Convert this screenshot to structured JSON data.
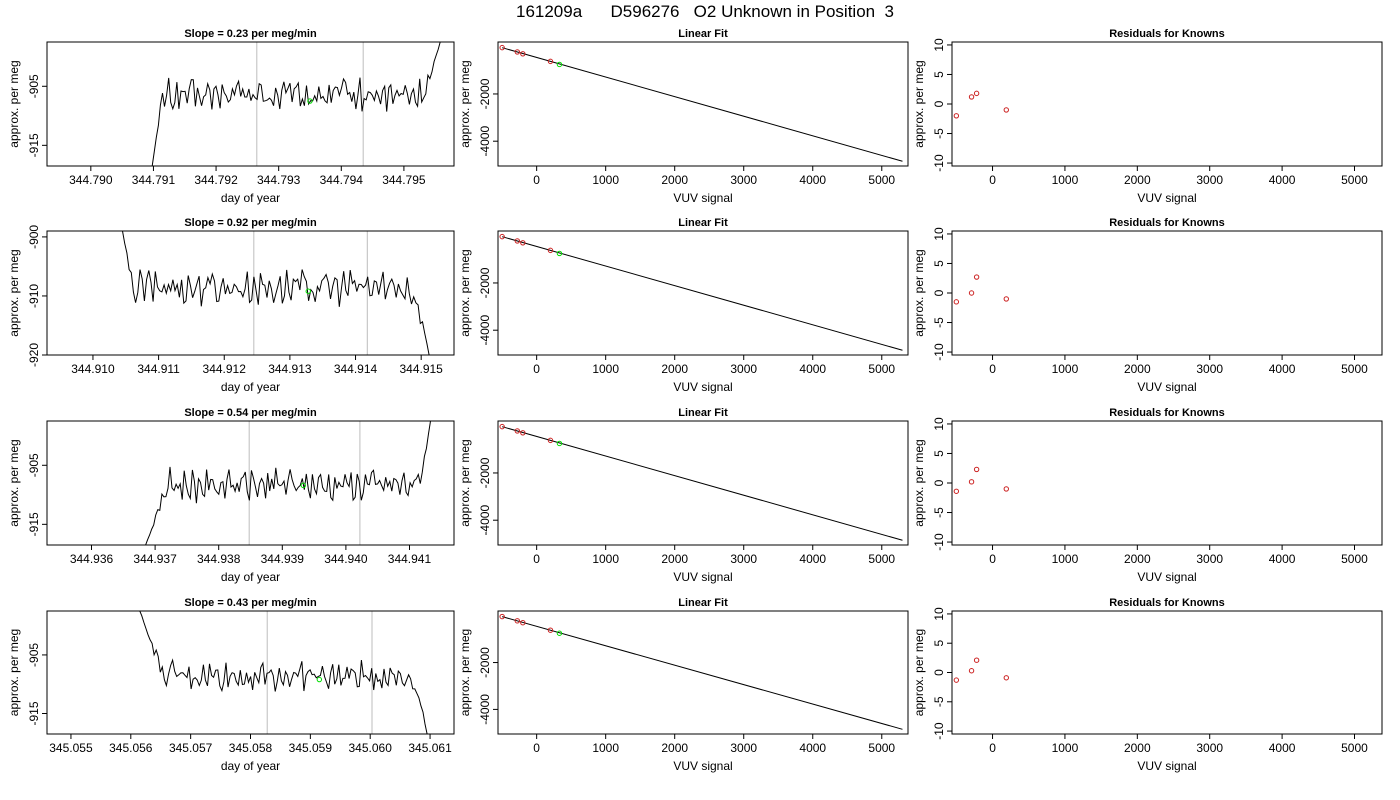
{
  "figure": {
    "title": "161209a      D596276   O2 Unknown in Position  3"
  },
  "colors": {
    "trace": "#000000",
    "vline": "#c8c8c8",
    "known_point": "#cc2222",
    "unknown_point": "#00dd00",
    "axis": "#000000"
  },
  "chart_data": [
    {
      "type": "line",
      "row": 0,
      "col": 0,
      "title": "Slope =  0.23  per meg/min",
      "xlabel": "day of year",
      "ylabel": "approx. per meg",
      "xlim": [
        344.7893,
        344.7958
      ],
      "ylim": [
        -918.5,
        -897.5
      ],
      "xticks": [
        344.79,
        344.791,
        344.792,
        344.793,
        344.794,
        344.795
      ],
      "xtick_labels": [
        "344.790",
        "344.791",
        "344.792",
        "344.793",
        "344.794",
        "344.795"
      ],
      "yticks": [
        -905,
        -915
      ],
      "ytick_labels": [
        "-905",
        "-915"
      ],
      "trace": {
        "x_start": 344.79098,
        "x_end": 344.79558,
        "rise_end": 344.79115,
        "steady_end": 344.79525,
        "start_y": -918.5,
        "end_y": -897.5,
        "mean": -906.5,
        "amp": 2.2
      },
      "vlines": [
        344.79265,
        344.79435
      ],
      "marker": {
        "x": 344.7935,
        "y": -907.5
      }
    },
    {
      "type": "line",
      "row": 1,
      "col": 0,
      "title": "Slope =  0.92  per meg/min",
      "xlabel": "day of year",
      "ylabel": "approx. per meg",
      "xlim": [
        344.9093,
        344.9155
      ],
      "ylim": [
        -920,
        -899
      ],
      "xticks": [
        344.91,
        344.911,
        344.912,
        344.913,
        344.914,
        344.915
      ],
      "xtick_labels": [
        "344.910",
        "344.911",
        "344.912",
        "344.913",
        "344.914",
        "344.915"
      ],
      "yticks": [
        -900,
        -910,
        -920
      ],
      "ytick_labels": [
        "-900",
        "-910",
        "-920"
      ],
      "trace": {
        "x_start": 344.91045,
        "x_end": 344.91512,
        "rise_end": 344.9106,
        "steady_end": 344.9148,
        "start_y": -899,
        "end_y": -920,
        "mean": -908.5,
        "amp": 2.3
      },
      "vlines": [
        344.91245,
        344.91418
      ],
      "marker": {
        "x": 344.91328,
        "y": -909.2
      }
    },
    {
      "type": "line",
      "row": 2,
      "col": 0,
      "title": "Slope =  0.54  per meg/min",
      "xlabel": "day of year",
      "ylabel": "approx. per meg",
      "xlim": [
        344.9353,
        344.9417
      ],
      "ylim": [
        -918.5,
        -897.5
      ],
      "xticks": [
        344.936,
        344.937,
        344.938,
        344.939,
        344.94,
        344.941
      ],
      "xtick_labels": [
        "344.936",
        "344.937",
        "344.938",
        "344.939",
        "344.940",
        "344.941"
      ],
      "yticks": [
        -905,
        -915
      ],
      "ytick_labels": [
        "-905",
        "-915"
      ],
      "trace": {
        "x_start": 344.93685,
        "x_end": 344.94133,
        "rise_end": 344.9372,
        "steady_end": 344.9411,
        "start_y": -918.5,
        "end_y": -897.5,
        "mean": -908.3,
        "amp": 2.1
      },
      "vlines": [
        344.93848,
        344.94022
      ],
      "marker": {
        "x": 344.93933,
        "y": -908.4
      }
    },
    {
      "type": "line",
      "row": 3,
      "col": 0,
      "title": "Slope =  0.43  per meg/min",
      "xlabel": "day of year",
      "ylabel": "approx. per meg",
      "xlim": [
        345.0546,
        345.0614
      ],
      "ylim": [
        -918.5,
        -897.5
      ],
      "xticks": [
        345.055,
        345.056,
        345.057,
        345.058,
        345.059,
        345.06,
        345.061
      ],
      "xtick_labels": [
        "345.055",
        "345.056",
        "345.057",
        "345.058",
        "345.059",
        "345.060",
        "345.061"
      ],
      "yticks": [
        -905,
        -915
      ],
      "ytick_labels": [
        "-905",
        "-915"
      ],
      "trace": {
        "x_start": 345.05615,
        "x_end": 345.06095,
        "rise_end": 345.05655,
        "steady_end": 345.06065,
        "start_y": -897.5,
        "end_y": -918.5,
        "mean": -908.6,
        "amp": 1.9
      },
      "vlines": [
        345.05828,
        345.06003
      ],
      "marker": {
        "x": 345.05915,
        "y": -909.2
      }
    },
    {
      "type": "scatter",
      "row": 0,
      "col": 1,
      "title": "Linear Fit",
      "xlabel": "VUV signal",
      "ylabel": "approx. per meg",
      "xlim": [
        -560,
        5380
      ],
      "ylim": [
        -5050,
        200
      ],
      "xticks": [
        0,
        1000,
        2000,
        3000,
        4000,
        5000
      ],
      "xtick_labels": [
        "0",
        "1000",
        "2000",
        "3000",
        "4000",
        "5000"
      ],
      "yticks": [
        -2000,
        -4000
      ],
      "ytick_labels": [
        "-2000",
        "-4000"
      ],
      "fit_line": {
        "x": [
          -500,
          5300
        ],
        "y": [
          -40,
          -4850
        ]
      },
      "knowns": [
        {
          "x": -500,
          "y": -38
        },
        {
          "x": -280,
          "y": -220
        },
        {
          "x": -200,
          "y": -300
        },
        {
          "x": 200,
          "y": -620
        }
      ],
      "unknown": {
        "x": 330,
        "y": -750
      }
    },
    {
      "type": "scatter",
      "row": 1,
      "col": 1,
      "title": "Linear Fit",
      "xlabel": "VUV signal",
      "ylabel": "approx. per meg",
      "xlim": [
        -560,
        5380
      ],
      "ylim": [
        -5050,
        200
      ],
      "xticks": [
        0,
        1000,
        2000,
        3000,
        4000,
        5000
      ],
      "xtick_labels": [
        "0",
        "1000",
        "2000",
        "3000",
        "4000",
        "5000"
      ],
      "yticks": [
        -2000,
        -4000
      ],
      "ytick_labels": [
        "-2000",
        "-4000"
      ],
      "fit_line": {
        "x": [
          -500,
          5300
        ],
        "y": [
          -40,
          -4850
        ]
      },
      "knowns": [
        {
          "x": -500,
          "y": -38
        },
        {
          "x": -280,
          "y": -220
        },
        {
          "x": -200,
          "y": -300
        },
        {
          "x": 200,
          "y": -620
        }
      ],
      "unknown": {
        "x": 330,
        "y": -750
      }
    },
    {
      "type": "scatter",
      "row": 2,
      "col": 1,
      "title": "Linear Fit",
      "xlabel": "VUV signal",
      "ylabel": "approx. per meg",
      "xlim": [
        -560,
        5380
      ],
      "ylim": [
        -5050,
        200
      ],
      "xticks": [
        0,
        1000,
        2000,
        3000,
        4000,
        5000
      ],
      "xtick_labels": [
        "0",
        "1000",
        "2000",
        "3000",
        "4000",
        "5000"
      ],
      "yticks": [
        -2000,
        -4000
      ],
      "ytick_labels": [
        "-2000",
        "-4000"
      ],
      "fit_line": {
        "x": [
          -500,
          5300
        ],
        "y": [
          -40,
          -4850
        ]
      },
      "knowns": [
        {
          "x": -500,
          "y": -38
        },
        {
          "x": -280,
          "y": -220
        },
        {
          "x": -200,
          "y": -300
        },
        {
          "x": 200,
          "y": -620
        }
      ],
      "unknown": {
        "x": 330,
        "y": -750
      }
    },
    {
      "type": "scatter",
      "row": 3,
      "col": 1,
      "title": "Linear Fit",
      "xlabel": "VUV signal",
      "ylabel": "approx. per meg",
      "xlim": [
        -560,
        5380
      ],
      "ylim": [
        -5050,
        200
      ],
      "xticks": [
        0,
        1000,
        2000,
        3000,
        4000,
        5000
      ],
      "xtick_labels": [
        "0",
        "1000",
        "2000",
        "3000",
        "4000",
        "5000"
      ],
      "yticks": [
        -2000,
        -4000
      ],
      "ytick_labels": [
        "-2000",
        "-4000"
      ],
      "fit_line": {
        "x": [
          -500,
          5300
        ],
        "y": [
          -40,
          -4850
        ]
      },
      "knowns": [
        {
          "x": -500,
          "y": -38
        },
        {
          "x": -280,
          "y": -220
        },
        {
          "x": -200,
          "y": -300
        },
        {
          "x": 200,
          "y": -620
        }
      ],
      "unknown": {
        "x": 330,
        "y": -750
      }
    },
    {
      "type": "scatter",
      "row": 0,
      "col": 2,
      "title": "Residuals for Knowns",
      "xlabel": "VUV signal",
      "ylabel": "approx. per meg",
      "xlim": [
        -560,
        5380
      ],
      "ylim": [
        -10.5,
        10.5
      ],
      "xticks": [
        0,
        1000,
        2000,
        3000,
        4000,
        5000
      ],
      "xtick_labels": [
        "0",
        "1000",
        "2000",
        "3000",
        "4000",
        "5000"
      ],
      "yticks": [
        10,
        5,
        0,
        -5,
        -10
      ],
      "ytick_labels": [
        "10",
        "5",
        "0",
        "-5",
        "-10"
      ],
      "points": [
        {
          "x": -500,
          "y": -2.0
        },
        {
          "x": -290,
          "y": 1.2
        },
        {
          "x": -220,
          "y": 1.8
        },
        {
          "x": 190,
          "y": -1.0
        }
      ]
    },
    {
      "type": "scatter",
      "row": 1,
      "col": 2,
      "title": "Residuals for Knowns",
      "xlabel": "VUV signal",
      "ylabel": "approx. per meg",
      "xlim": [
        -560,
        5380
      ],
      "ylim": [
        -10.5,
        10.5
      ],
      "xticks": [
        0,
        1000,
        2000,
        3000,
        4000,
        5000
      ],
      "xtick_labels": [
        "0",
        "1000",
        "2000",
        "3000",
        "4000",
        "5000"
      ],
      "yticks": [
        10,
        5,
        0,
        -5,
        -10
      ],
      "ytick_labels": [
        "10",
        "5",
        "0",
        "-5",
        "-10"
      ],
      "points": [
        {
          "x": -500,
          "y": -1.5
        },
        {
          "x": -290,
          "y": 0.0
        },
        {
          "x": -220,
          "y": 2.7
        },
        {
          "x": 190,
          "y": -1.0
        }
      ]
    },
    {
      "type": "scatter",
      "row": 2,
      "col": 2,
      "title": "Residuals for Knowns",
      "xlabel": "VUV signal",
      "ylabel": "approx. per meg",
      "xlim": [
        -560,
        5380
      ],
      "ylim": [
        -10.5,
        10.5
      ],
      "xticks": [
        0,
        1000,
        2000,
        3000,
        4000,
        5000
      ],
      "xtick_labels": [
        "0",
        "1000",
        "2000",
        "3000",
        "4000",
        "5000"
      ],
      "yticks": [
        10,
        5,
        0,
        -5,
        -10
      ],
      "ytick_labels": [
        "10",
        "5",
        "0",
        "-5",
        "-10"
      ],
      "points": [
        {
          "x": -500,
          "y": -1.4
        },
        {
          "x": -290,
          "y": 0.2
        },
        {
          "x": -220,
          "y": 2.3
        },
        {
          "x": 190,
          "y": -1.0
        }
      ]
    },
    {
      "type": "scatter",
      "row": 3,
      "col": 2,
      "title": "Residuals for Knowns",
      "xlabel": "VUV signal",
      "ylabel": "approx. per meg",
      "xlim": [
        -560,
        5380
      ],
      "ylim": [
        -10.5,
        10.5
      ],
      "xticks": [
        0,
        1000,
        2000,
        3000,
        4000,
        5000
      ],
      "xtick_labels": [
        "0",
        "1000",
        "2000",
        "3000",
        "4000",
        "5000"
      ],
      "yticks": [
        10,
        5,
        0,
        -5,
        -10
      ],
      "ytick_labels": [
        "10",
        "5",
        "0",
        "-5",
        "-10"
      ],
      "points": [
        {
          "x": -500,
          "y": -1.3
        },
        {
          "x": -290,
          "y": 0.3
        },
        {
          "x": -220,
          "y": 2.1
        },
        {
          "x": 190,
          "y": -0.9
        }
      ]
    }
  ]
}
